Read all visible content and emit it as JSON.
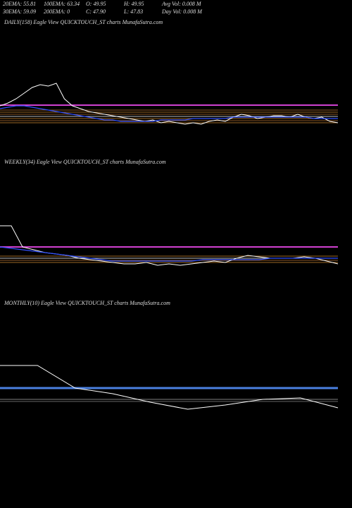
{
  "header": {
    "row1": [
      "20EMA: 55.81",
      "100EMA: 63.34",
      "O: 49.95",
      "H: 49.95",
      "Avg Vol: 0.008 M"
    ],
    "row2": [
      "30EMA: 59.09",
      "200EMA: 0",
      "C: 47.90",
      "L: 47.83",
      "Day Vol: 0.008 M"
    ]
  },
  "chart_data": [
    {
      "type": "line",
      "title": "DAILY(158) Eagle  View  QUICKTOUCH_ST charts MunafaSutra.com",
      "ylim": [
        30,
        110
      ],
      "series": [
        {
          "color": "#ffffff",
          "values": [
            55,
            57,
            60,
            64,
            68,
            70,
            69,
            71,
            60,
            55,
            53,
            51,
            50,
            49,
            48,
            47,
            46,
            45,
            44,
            45,
            43,
            44,
            43,
            42,
            43,
            42,
            44,
            45,
            44,
            47,
            49,
            48,
            46,
            47,
            48,
            48,
            47,
            49,
            47,
            46,
            47,
            44,
            43
          ]
        },
        {
          "color": "#3050ff",
          "values": [
            53,
            54,
            55,
            55,
            54,
            53,
            52,
            51,
            50,
            49,
            48,
            47,
            46,
            45,
            45,
            44,
            44,
            44,
            44,
            44,
            45,
            45,
            45,
            45,
            46,
            46,
            46,
            46,
            46,
            47,
            47,
            47,
            47,
            47,
            47,
            47,
            47,
            47,
            47,
            46,
            46,
            46,
            46
          ]
        }
      ],
      "levels": [
        {
          "value": 55.5,
          "color": "#d040d0"
        },
        {
          "value": 52,
          "color": "#b87333"
        },
        {
          "value": 50.5,
          "color": "#d08a30"
        },
        {
          "value": 49,
          "color": "#b87333"
        },
        {
          "value": 47.5,
          "color": "#ffffff"
        },
        {
          "value": 46,
          "color": "#d08a30"
        },
        {
          "value": 44.5,
          "color": "#b87333"
        },
        {
          "value": 43,
          "color": "#d08a30"
        }
      ]
    },
    {
      "type": "line",
      "title": "WEEKLY(34) Eagle  View  QUICKTOUCH_ST charts MunafaSutra.com",
      "ylim": [
        30,
        110
      ],
      "series": [
        {
          "color": "#ffffff",
          "values": [
            70,
            70,
            55,
            53,
            51,
            50,
            49,
            47,
            46,
            45,
            44,
            43,
            43,
            44,
            42,
            43,
            42,
            43,
            44,
            45,
            44,
            47,
            49,
            48,
            47,
            47,
            47,
            48,
            47,
            45,
            43
          ]
        },
        {
          "color": "#3050ff",
          "values": [
            55,
            54,
            53,
            52,
            51,
            50,
            49,
            48,
            47,
            46,
            45,
            45,
            45,
            45,
            45,
            45,
            45,
            45,
            46,
            46,
            46,
            46,
            46,
            46,
            47,
            47,
            47,
            47,
            47,
            47,
            47
          ]
        }
      ],
      "levels": [
        {
          "value": 55,
          "color": "#d040d0"
        },
        {
          "value": 48.5,
          "color": "#d08a30"
        },
        {
          "value": 47,
          "color": "#ffffff"
        },
        {
          "value": 45.5,
          "color": "#b87333"
        },
        {
          "value": 44,
          "color": "#d08a30"
        }
      ]
    },
    {
      "type": "line",
      "title": "MONTHLY(10) Eagle  View  QUICKTOUCH_ST charts MunafaSutra.com",
      "ylim": [
        30,
        110
      ],
      "series": [
        {
          "color": "#ffffff",
          "values": [
            71,
            71,
            55,
            51,
            45,
            40,
            43,
            47,
            48,
            41
          ]
        }
      ],
      "levels": [
        {
          "value": 55,
          "color": "#4a80e0"
        },
        {
          "value": 47,
          "color": "#aaaaaa"
        },
        {
          "value": 45.5,
          "color": "#888888"
        }
      ]
    }
  ]
}
